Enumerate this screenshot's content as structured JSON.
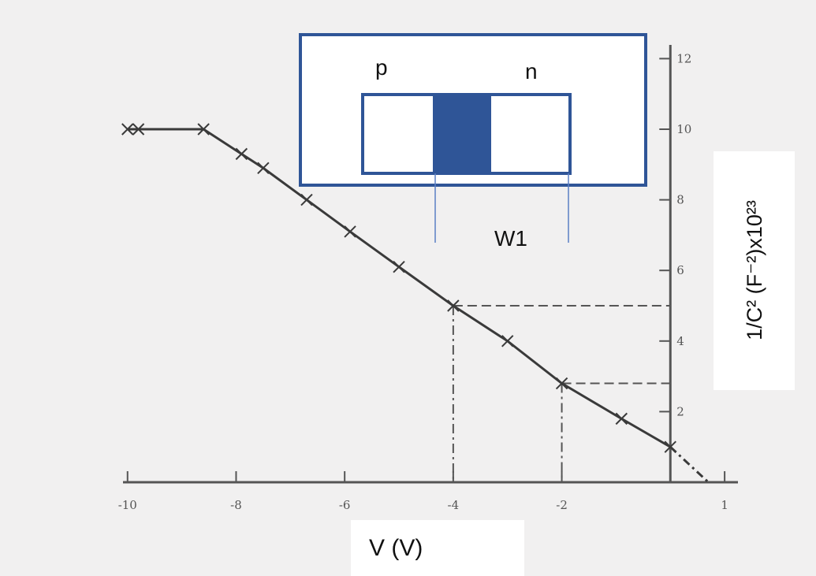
{
  "chart_data": {
    "type": "line",
    "xlabel": "V (V)",
    "ylabel": "1/C² (F⁻²)x10²³",
    "xlim": [
      -10.2,
      1.1
    ],
    "ylim": [
      0,
      12.5
    ],
    "xticks": [
      -10,
      -8,
      -6,
      -4,
      -2,
      1
    ],
    "yticks": [
      2,
      4,
      6,
      8,
      10,
      12
    ],
    "series": [
      {
        "color": "#3a3a3a",
        "dashed": false,
        "x": [
          -10,
          -9.8,
          -8.6,
          -7.9,
          -7.5,
          -6.7,
          -5.9,
          -5,
          -4,
          -3,
          -2,
          -0.9,
          0
        ],
        "values": [
          10,
          10,
          10,
          9.3,
          8.9,
          8,
          7.1,
          6.1,
          5,
          4,
          2.8,
          1.8,
          1
        ]
      },
      {
        "color": "#3a3a3a",
        "dashed": true,
        "x": [
          0,
          0.7
        ],
        "values": [
          1,
          0
        ]
      }
    ],
    "guides": [
      {
        "x": -4,
        "y": 5
      },
      {
        "x": -2,
        "y": 2.8
      }
    ],
    "inset": {
      "left_label": "p",
      "right_label": "n",
      "width_label": "W1",
      "color": "#2f5597"
    }
  }
}
